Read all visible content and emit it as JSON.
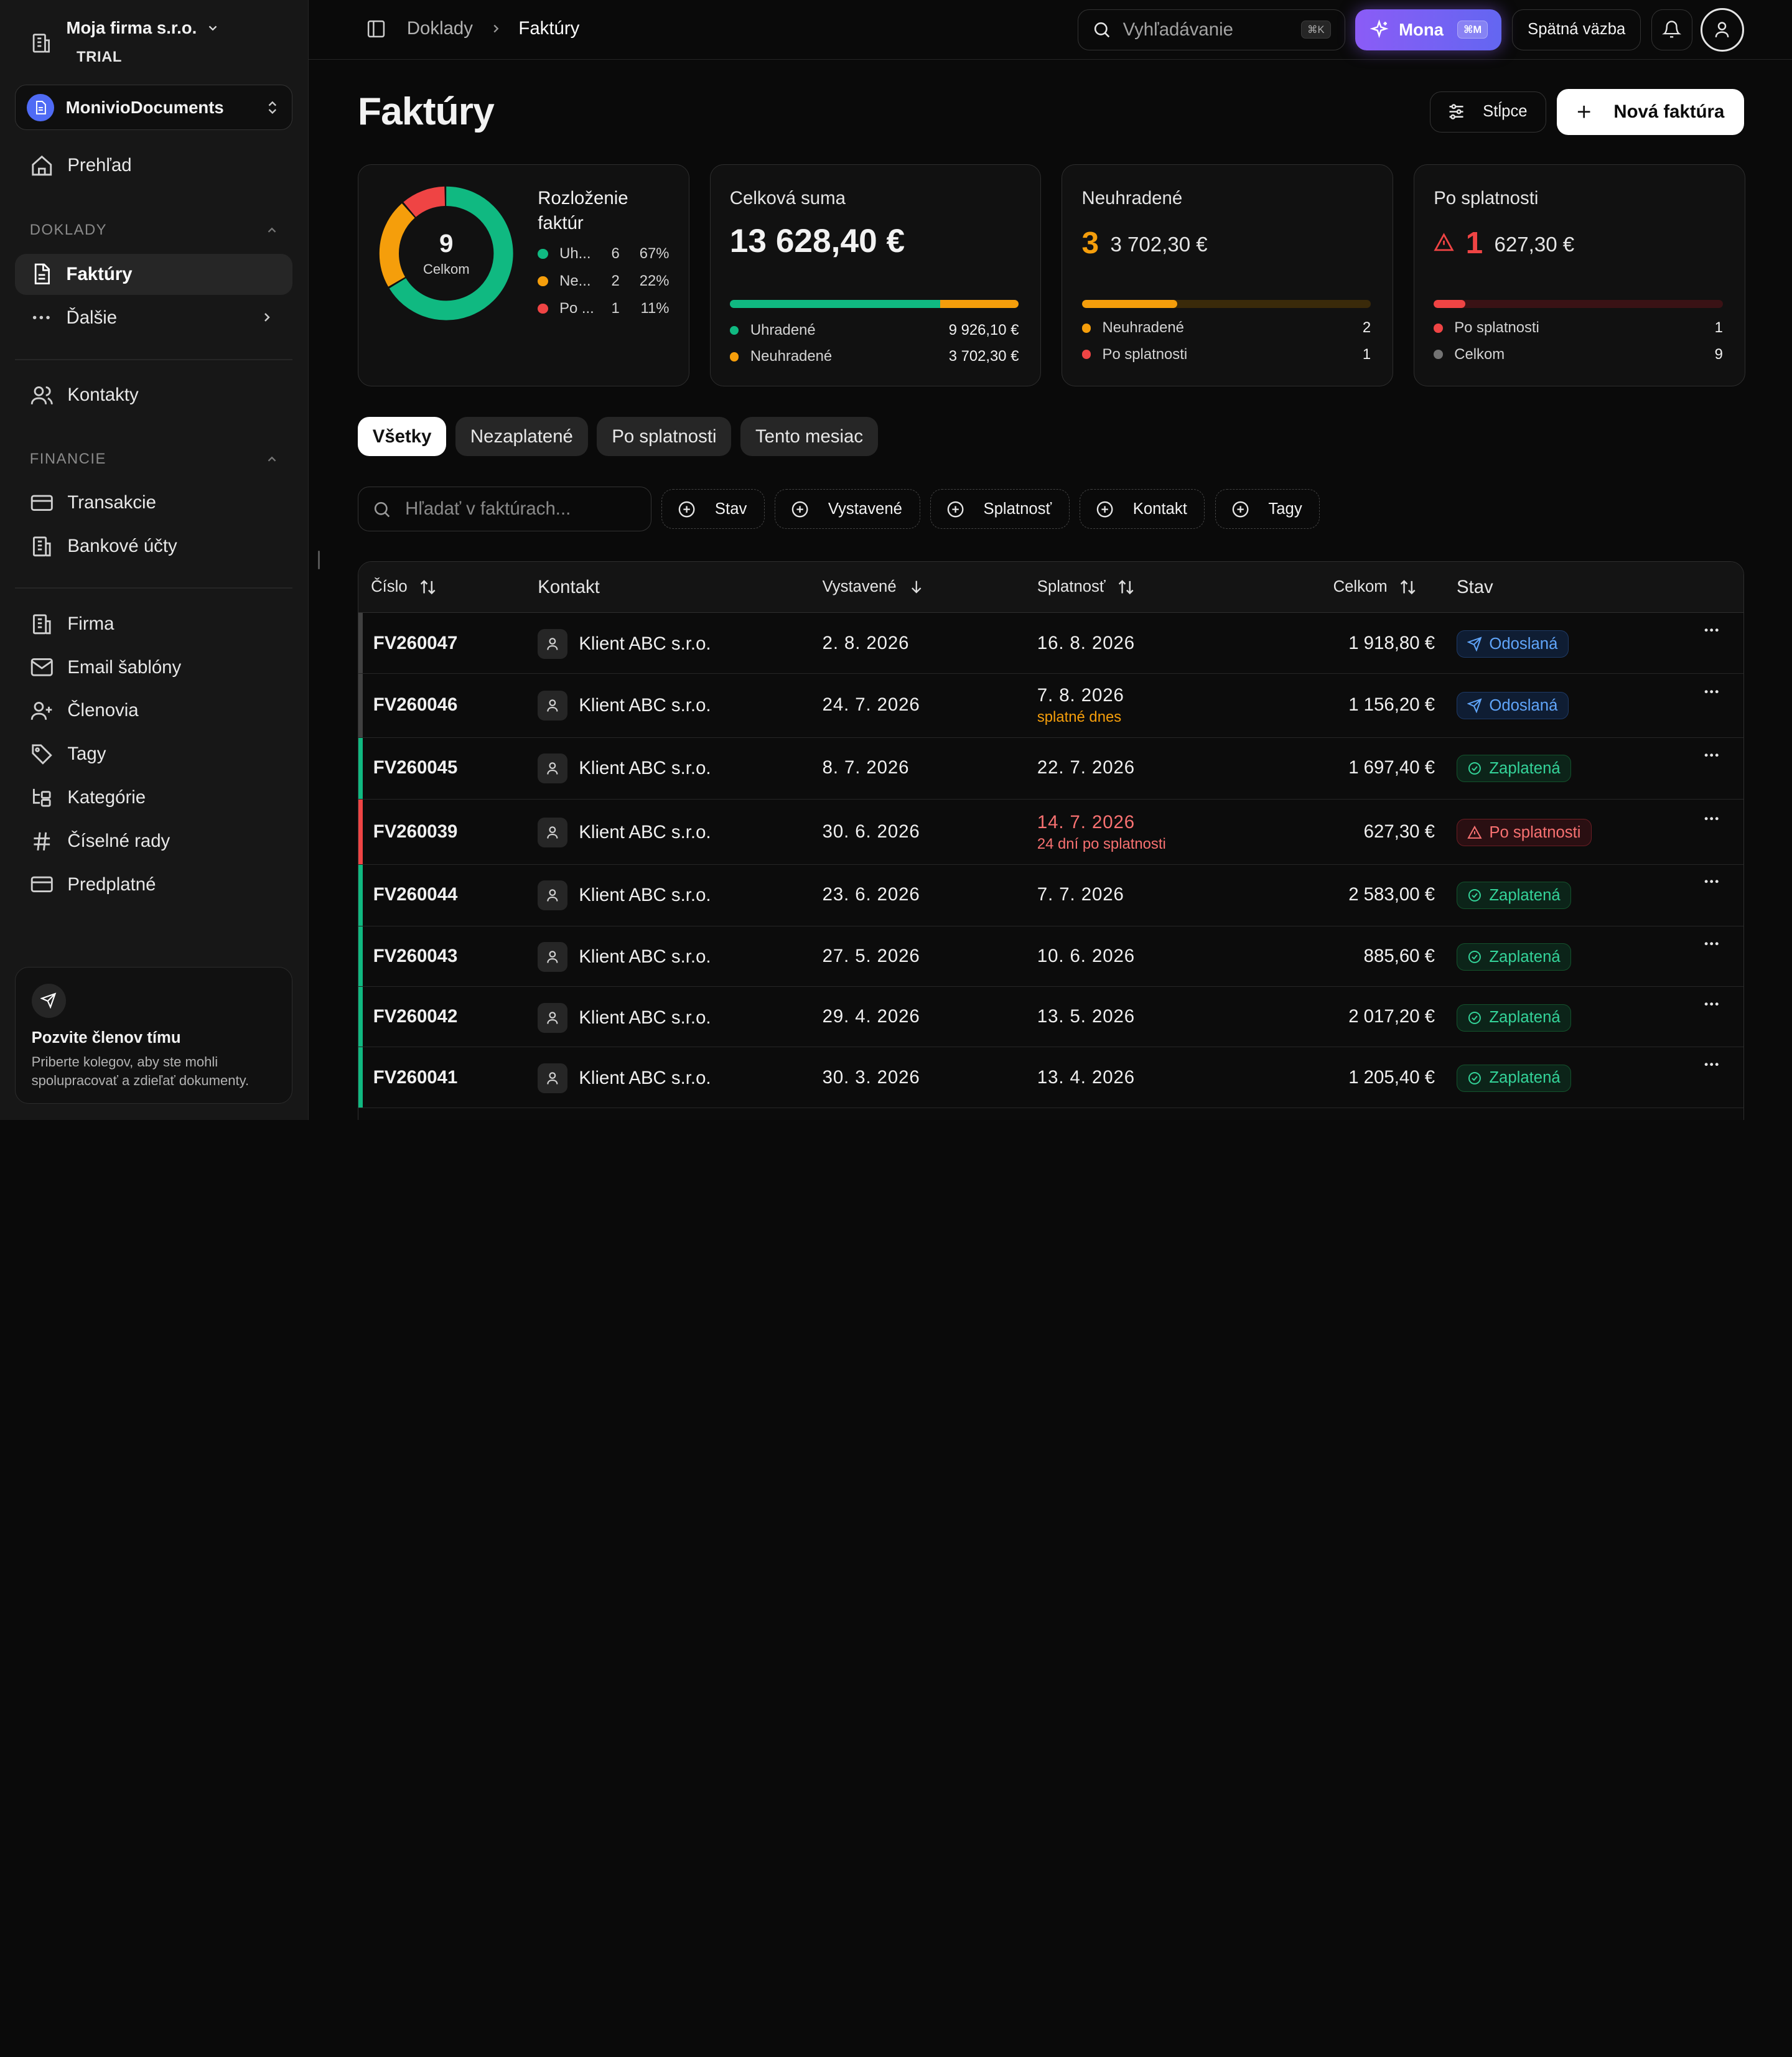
{
  "org": {
    "name": "Moja firma s.r.o.",
    "plan": "TRIAL"
  },
  "workspace": {
    "name": "MonivioDocuments"
  },
  "nav": {
    "overview": "Prehľad",
    "section_docs": "DOKLADY",
    "invoices": "Faktúry",
    "more": "Ďalšie",
    "contacts": "Kontakty",
    "section_finance": "FINANCIE",
    "transactions": "Transakcie",
    "bank_accounts": "Bankové účty",
    "company": "Firma",
    "email_templates": "Email šablóny",
    "members": "Členovia",
    "tags": "Tagy",
    "categories": "Kategórie",
    "number_series": "Číselné rady",
    "subscription": "Predplatné"
  },
  "invite": {
    "title": "Pozvite členov tímu",
    "text": "Priberte kolegov, aby ste mohli spolupracovať a zdieľať dokumenty."
  },
  "topbar": {
    "breadcrumb_parent": "Doklady",
    "breadcrumb_current": "Faktúry",
    "search_placeholder": "Vyhľadávanie",
    "search_kbd": "⌘K",
    "mona_label": "Mona",
    "mona_kbd": "⌘M",
    "feedback_label": "Spätná väzba"
  },
  "page": {
    "title": "Faktúry",
    "columns_button": "Stĺpce",
    "new_invoice_button": "Nová faktúra"
  },
  "cards": {
    "distribution": {
      "title": "Rozloženie faktúr",
      "total": "9",
      "total_label": "Celkom",
      "rows": [
        {
          "label": "Uhradené",
          "short": "Uh...",
          "count": "6",
          "pct": "67%",
          "color": "#10b981",
          "fraction": 0.6667
        },
        {
          "label": "Neuhradené",
          "short": "Ne...",
          "count": "2",
          "pct": "22%",
          "color": "#f59e0b",
          "fraction": 0.2222
        },
        {
          "label": "Po splatnosti",
          "short": "Po ...",
          "count": "1",
          "pct": "11%",
          "color": "#ef4444",
          "fraction": 0.1111
        }
      ]
    },
    "total": {
      "title": "Celková suma",
      "value": "13 628,40 €",
      "paid_fraction": 0.728,
      "rows": [
        {
          "label": "Uhradené",
          "value": "9 926,10 €",
          "color": "#10b981"
        },
        {
          "label": "Neuhradené",
          "value": "3 702,30 €",
          "color": "#f59e0b"
        }
      ]
    },
    "unpaid": {
      "title": "Neuhradené",
      "count": "3",
      "amount": "3 702,30 €",
      "fill_fraction": 0.33,
      "rows": [
        {
          "label": "Neuhradené",
          "value": "2",
          "color": "#f59e0b"
        },
        {
          "label": "Po splatnosti",
          "value": "1",
          "color": "#ef4444"
        }
      ]
    },
    "overdue": {
      "title": "Po splatnosti",
      "count": "1",
      "amount": "627,30 €",
      "fill_fraction": 0.11,
      "rows": [
        {
          "label": "Po splatnosti",
          "value": "1",
          "color": "#ef4444"
        },
        {
          "label": "Celkom",
          "value": "9",
          "color": "#737373"
        }
      ]
    }
  },
  "tabs": [
    "Všetky",
    "Nezaplatené",
    "Po splatnosti",
    "Tento mesiac"
  ],
  "filters": {
    "search_placeholder": "Hľadať v faktúrach...",
    "chips": [
      "Stav",
      "Vystavené",
      "Splatnosť",
      "Kontakt",
      "Tagy"
    ]
  },
  "table": {
    "headers": {
      "number": "Číslo",
      "contact": "Kontakt",
      "issued": "Vystavené",
      "due": "Splatnosť",
      "total": "Celkom",
      "status": "Stav"
    },
    "rows": [
      {
        "number": "FV260047",
        "contact": "Klient ABC s.r.o.",
        "issued": "2. 8. 2026",
        "due": "16. 8. 2026",
        "due_note": "",
        "total": "1 918,80 €",
        "status": "Odoslaná",
        "kind": "sent"
      },
      {
        "number": "FV260046",
        "contact": "Klient ABC s.r.o.",
        "issued": "24. 7. 2026",
        "due": "7. 8. 2026",
        "due_note": "splatné dnes",
        "total": "1 156,20 €",
        "status": "Odoslaná",
        "kind": "sent"
      },
      {
        "number": "FV260045",
        "contact": "Klient ABC s.r.o.",
        "issued": "8. 7. 2026",
        "due": "22. 7. 2026",
        "due_note": "",
        "total": "1 697,40 €",
        "status": "Zaplatená",
        "kind": "paid"
      },
      {
        "number": "FV260039",
        "contact": "Klient ABC s.r.o.",
        "issued": "30. 6. 2026",
        "due": "14. 7. 2026",
        "due_note": "24 dní po splatnosti",
        "total": "627,30 €",
        "status": "Po splatnosti",
        "kind": "overdue"
      },
      {
        "number": "FV260044",
        "contact": "Klient ABC s.r.o.",
        "issued": "23. 6. 2026",
        "due": "7. 7. 2026",
        "due_note": "",
        "total": "2 583,00 €",
        "status": "Zaplatená",
        "kind": "paid"
      },
      {
        "number": "FV260043",
        "contact": "Klient ABC s.r.o.",
        "issued": "27. 5. 2026",
        "due": "10. 6. 2026",
        "due_note": "",
        "total": "885,60 €",
        "status": "Zaplatená",
        "kind": "paid"
      },
      {
        "number": "FV260042",
        "contact": "Klient ABC s.r.o.",
        "issued": "29. 4. 2026",
        "due": "13. 5. 2026",
        "due_note": "",
        "total": "2 017,20 €",
        "status": "Zaplatená",
        "kind": "paid"
      },
      {
        "number": "FV260041",
        "contact": "Klient ABC s.r.o.",
        "issued": "30. 3. 2026",
        "due": "13. 4. 2026",
        "due_note": "",
        "total": "1 205,40 €",
        "status": "Zaplatená",
        "kind": "paid"
      }
    ]
  },
  "colors": {
    "paid": "#10b981",
    "unpaid": "#f59e0b",
    "overdue": "#ef4444",
    "sent": "#3b82f6",
    "neutral": "#525252"
  }
}
